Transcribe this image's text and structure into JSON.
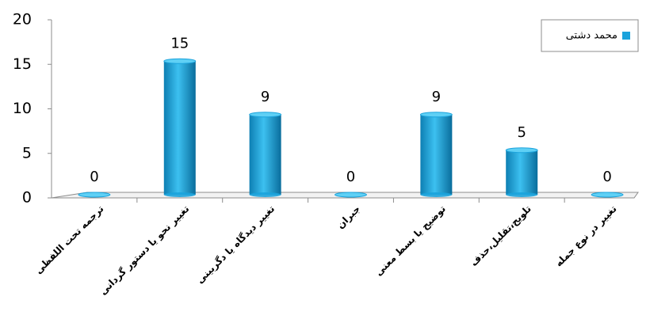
{
  "chart_data": {
    "type": "bar",
    "categories": [
      "ترجمه تحت اللفظی",
      "تغییر نحو یا دستور گردانی",
      "تغییر دیدگاه یا دگربینی",
      "جبران",
      "توضیح یا بسط معنی",
      "تلویح،تقلیل،حذف",
      "تغییر در نوع جمله"
    ],
    "series": [
      {
        "name": "محمد دشتی",
        "color": "#1ba3dc",
        "values": [
          0,
          15,
          9,
          0,
          9,
          5,
          0
        ]
      }
    ],
    "ylim": [
      0,
      20
    ],
    "yticks": [
      0,
      5,
      10,
      15,
      20
    ],
    "legend": "top-right"
  }
}
